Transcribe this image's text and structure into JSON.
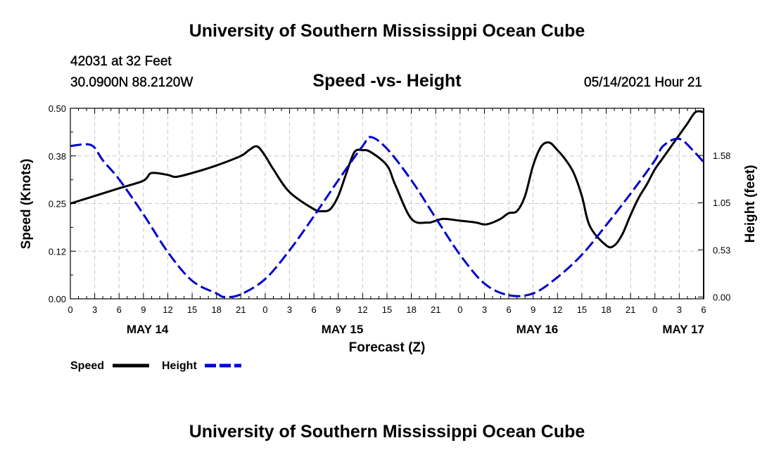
{
  "header": {
    "title": "University of Southern Mississippi Ocean Cube",
    "station": "42031 at 32 Feet",
    "coordinates": "30.0900N  88.2120W",
    "subtitle": "Speed -vs- Height",
    "datetime": "05/14/2021 Hour 21"
  },
  "footer": {
    "title": "University of Southern Mississippi Ocean Cube"
  },
  "chart_data": {
    "type": "line",
    "title": "Speed -vs- Height",
    "xlabel": "Forecast (Z)",
    "ylabel": "Speed (Knots)",
    "y2label": "Height (feet)",
    "x_range": [
      0,
      78
    ],
    "ylim": [
      0,
      0.5
    ],
    "y2lim": [
      -0.02,
      2.1
    ],
    "yticks": [
      0,
      0.125,
      0.25,
      0.375,
      0.5
    ],
    "ytick_labels": [
      "0.00",
      "0.12",
      "0.25",
      "0.38",
      "0.50"
    ],
    "y2ticks": [
      0,
      0.525,
      1.05,
      1.575
    ],
    "y2tick_labels": [
      "0.00",
      "0.53",
      "1.05",
      "1.58"
    ],
    "xticks": [
      0,
      3,
      6,
      9,
      12,
      15,
      18,
      21,
      24,
      27,
      30,
      33,
      36,
      39,
      42,
      45,
      48,
      51,
      54,
      57,
      60,
      63,
      66,
      69,
      72,
      75,
      78
    ],
    "xtick_labels": [
      "0",
      "3",
      "6",
      "9",
      "12",
      "15",
      "18",
      "21",
      "0",
      "3",
      "6",
      "9",
      "12",
      "15",
      "18",
      "21",
      "0",
      "3",
      "6",
      "9",
      "12",
      "15",
      "18",
      "21",
      "0",
      "3",
      "6"
    ],
    "day_labels": [
      {
        "x": 9.5,
        "label": "MAY 14"
      },
      {
        "x": 33.5,
        "label": "MAY 15"
      },
      {
        "x": 57.5,
        "label": "MAY 16"
      },
      {
        "x": 75.5,
        "label": "MAY 17"
      }
    ],
    "grid": true,
    "legend_position": "bottom-left",
    "series": [
      {
        "name": "Speed",
        "axis": "left",
        "color": "#000000",
        "style": "solid",
        "x": [
          0,
          3,
          6,
          9,
          10,
          12,
          13,
          15,
          18,
          21,
          22,
          23,
          24,
          25,
          27,
          30,
          31,
          32,
          33,
          34,
          35,
          36,
          37,
          39,
          40,
          42,
          44,
          45,
          46,
          48,
          50,
          51,
          52,
          53,
          54,
          55,
          56,
          57,
          58,
          59,
          60,
          61,
          62,
          63,
          64,
          66,
          67,
          68,
          69,
          70,
          71,
          72,
          73,
          74,
          75,
          76,
          77,
          78
        ],
        "values": [
          0.25,
          0.27,
          0.29,
          0.31,
          0.33,
          0.325,
          0.32,
          0.33,
          0.35,
          0.375,
          0.39,
          0.4,
          0.375,
          0.34,
          0.28,
          0.235,
          0.23,
          0.235,
          0.27,
          0.33,
          0.385,
          0.39,
          0.385,
          0.35,
          0.3,
          0.21,
          0.2,
          0.205,
          0.21,
          0.205,
          0.2,
          0.195,
          0.2,
          0.21,
          0.225,
          0.23,
          0.27,
          0.35,
          0.4,
          0.41,
          0.39,
          0.365,
          0.33,
          0.27,
          0.19,
          0.14,
          0.14,
          0.17,
          0.22,
          0.265,
          0.3,
          0.34,
          0.37,
          0.4,
          0.43,
          0.46,
          0.49,
          0.49
        ]
      },
      {
        "name": "Height",
        "axis": "right",
        "color": "#0000cc",
        "style": "dashed",
        "x": [
          0,
          2,
          3,
          4,
          6,
          9,
          12,
          15,
          18,
          19,
          21,
          24,
          27,
          30,
          33,
          36,
          37,
          39,
          42,
          45,
          48,
          51,
          54,
          57,
          60,
          63,
          66,
          69,
          72,
          73,
          75,
          77,
          78
        ],
        "values": [
          1.68,
          1.7,
          1.66,
          1.52,
          1.31,
          0.92,
          0.5,
          0.18,
          0.04,
          0.0,
          0.03,
          0.2,
          0.52,
          0.9,
          1.3,
          1.68,
          1.78,
          1.65,
          1.3,
          0.88,
          0.47,
          0.15,
          0.02,
          0.04,
          0.22,
          0.47,
          0.8,
          1.15,
          1.52,
          1.68,
          1.76,
          1.6,
          1.5
        ]
      }
    ]
  }
}
